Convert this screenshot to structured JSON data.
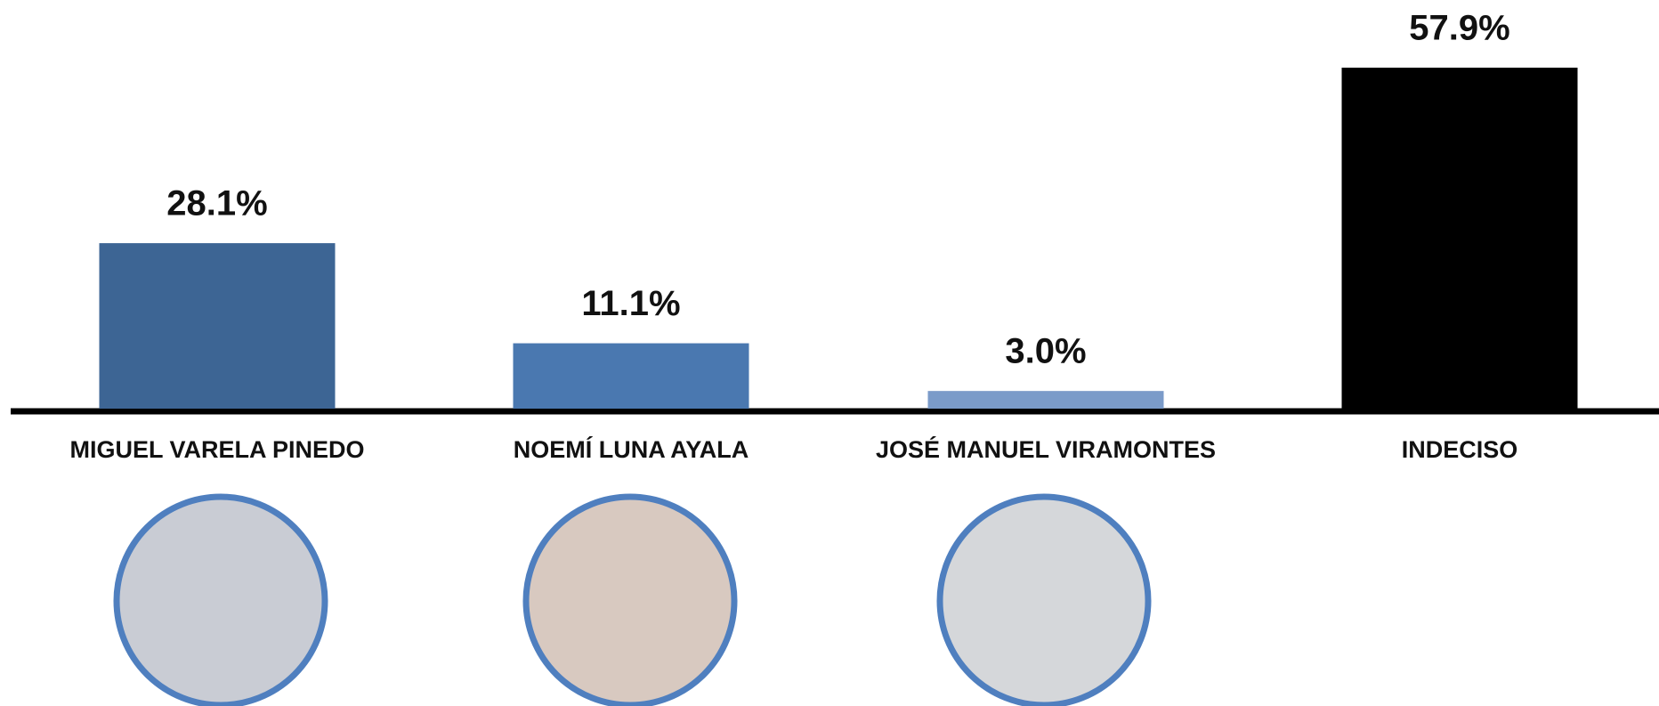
{
  "chart_data": {
    "type": "bar",
    "categories": [
      "MIGUEL VARELA PINEDO",
      "NOEMÍ LUNA AYALA",
      "JOSÉ MANUEL VIRAMONTES",
      "INDECISO"
    ],
    "values": [
      28.1,
      11.1,
      3.0,
      57.9
    ],
    "value_labels": [
      "28.1%",
      "11.1%",
      "3.0%",
      "57.9%"
    ],
    "colors": [
      "#3d6594",
      "#4a78b0",
      "#7b9bc9",
      "#000000"
    ]
  }
}
